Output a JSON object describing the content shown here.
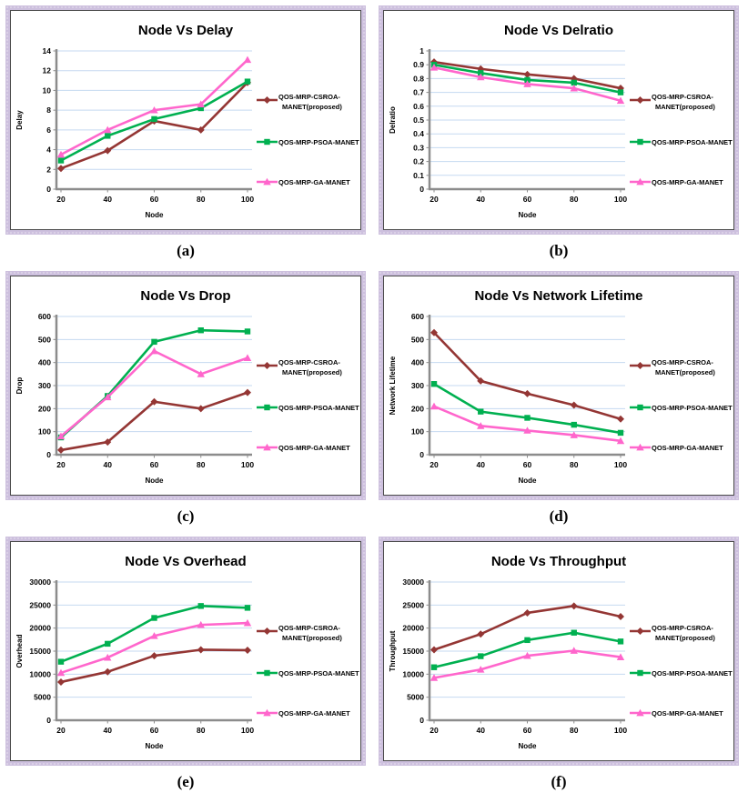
{
  "style": {
    "series_colors": [
      "#943634",
      "#00B050",
      "#FF66CC"
    ],
    "marker_shapes": [
      "diamond",
      "square",
      "triangle"
    ],
    "gridline_color": "#C5D9F1",
    "axis_color": "#8C8C8C",
    "text_color": "#000000",
    "legend_text_color": "#1A1A1A",
    "panel_border_color": "#CDC0DE",
    "panel_inner_border_color": "#4A4A4A"
  },
  "legend": {
    "entries": [
      {
        "lines": [
          "QOS-MRP-CSROA-",
          "MANET(proposed)"
        ]
      },
      {
        "lines": [
          "QOS-MRP-PSOA-MANET"
        ]
      },
      {
        "lines": [
          "QOS-MRP-GA-MANET"
        ]
      }
    ]
  },
  "chart_data": [
    {
      "type": "line",
      "title": "Node Vs Delay",
      "xlabel": "Node",
      "ylabel": "Delay",
      "caption": "(a)",
      "categories": [
        20,
        40,
        60,
        80,
        100
      ],
      "ylim": [
        0,
        14
      ],
      "ytick_step": 2,
      "grid": true,
      "legend_position": "right",
      "series": [
        {
          "name": "QOS-MRP-CSROA-MANET(proposed)",
          "values": [
            2.1,
            3.9,
            6.9,
            6.0,
            10.8
          ]
        },
        {
          "name": "QOS-MRP-PSOA-MANET",
          "values": [
            2.9,
            5.4,
            7.1,
            8.2,
            10.9
          ]
        },
        {
          "name": "QOS-MRP-GA-MANET",
          "values": [
            3.5,
            6.0,
            8.0,
            8.6,
            13.1
          ]
        }
      ]
    },
    {
      "type": "line",
      "title": "Node Vs Delratio",
      "xlabel": "Node",
      "ylabel": "Delratio",
      "caption": "(b)",
      "categories": [
        20,
        40,
        60,
        80,
        100
      ],
      "ylim": [
        0,
        1
      ],
      "ytick_step": 0.1,
      "grid": true,
      "legend_position": "right",
      "series": [
        {
          "name": "QOS-MRP-CSROA-MANET(proposed)",
          "values": [
            0.92,
            0.87,
            0.83,
            0.8,
            0.73
          ]
        },
        {
          "name": "QOS-MRP-PSOA-MANET",
          "values": [
            0.9,
            0.84,
            0.79,
            0.77,
            0.7
          ]
        },
        {
          "name": "QOS-MRP-GA-MANET",
          "values": [
            0.88,
            0.81,
            0.76,
            0.73,
            0.64
          ]
        }
      ]
    },
    {
      "type": "line",
      "title": "Node Vs Drop",
      "xlabel": "Node",
      "ylabel": "Drop",
      "caption": "(c)",
      "categories": [
        20,
        40,
        60,
        80,
        100
      ],
      "ylim": [
        0,
        600
      ],
      "ytick_step": 100,
      "grid": true,
      "legend_position": "right",
      "series": [
        {
          "name": "QOS-MRP-CSROA-MANET(proposed)",
          "values": [
            20,
            55,
            230,
            200,
            270
          ]
        },
        {
          "name": "QOS-MRP-PSOA-MANET",
          "values": [
            75,
            255,
            490,
            540,
            535
          ]
        },
        {
          "name": "QOS-MRP-GA-MANET",
          "values": [
            80,
            250,
            450,
            350,
            420
          ]
        }
      ]
    },
    {
      "type": "line",
      "title": "Node Vs Network Lifetime",
      "xlabel": "Node",
      "ylabel": "Network Lifetime",
      "caption": "(d)",
      "categories": [
        20,
        40,
        60,
        80,
        100
      ],
      "ylim": [
        0,
        600
      ],
      "ytick_step": 100,
      "grid": true,
      "legend_position": "right",
      "series": [
        {
          "name": "QOS-MRP-CSROA-MANET(proposed)",
          "values": [
            530,
            320,
            265,
            215,
            155
          ]
        },
        {
          "name": "QOS-MRP-PSOA-MANET",
          "values": [
            307,
            187,
            160,
            130,
            95
          ]
        },
        {
          "name": "QOS-MRP-GA-MANET",
          "values": [
            210,
            125,
            105,
            85,
            60
          ]
        }
      ]
    },
    {
      "type": "line",
      "title": "Node Vs Overhead",
      "xlabel": "Node",
      "ylabel": "Overhead",
      "caption": "(e)",
      "categories": [
        20,
        40,
        60,
        80,
        100
      ],
      "ylim": [
        0,
        30000
      ],
      "ytick_step": 5000,
      "grid": true,
      "legend_position": "right",
      "series": [
        {
          "name": "QOS-MRP-CSROA-MANET(proposed)",
          "values": [
            8300,
            10500,
            14000,
            15300,
            15200
          ]
        },
        {
          "name": "QOS-MRP-PSOA-MANET",
          "values": [
            12700,
            16600,
            22200,
            24800,
            24400
          ]
        },
        {
          "name": "QOS-MRP-GA-MANET",
          "values": [
            10300,
            13600,
            18300,
            20700,
            21100
          ]
        }
      ]
    },
    {
      "type": "line",
      "title": "Node Vs Throughput",
      "xlabel": "Node",
      "ylabel": "Throughput",
      "caption": "(f)",
      "categories": [
        20,
        40,
        60,
        80,
        100
      ],
      "ylim": [
        0,
        30000
      ],
      "ytick_step": 5000,
      "grid": true,
      "legend_position": "right",
      "series": [
        {
          "name": "QOS-MRP-CSROA-MANET(proposed)",
          "values": [
            15300,
            18700,
            23300,
            24800,
            22500
          ]
        },
        {
          "name": "QOS-MRP-PSOA-MANET",
          "values": [
            11500,
            13900,
            17400,
            19000,
            17100
          ]
        },
        {
          "name": "QOS-MRP-GA-MANET",
          "values": [
            9200,
            11000,
            14000,
            15100,
            13700
          ]
        }
      ]
    }
  ]
}
